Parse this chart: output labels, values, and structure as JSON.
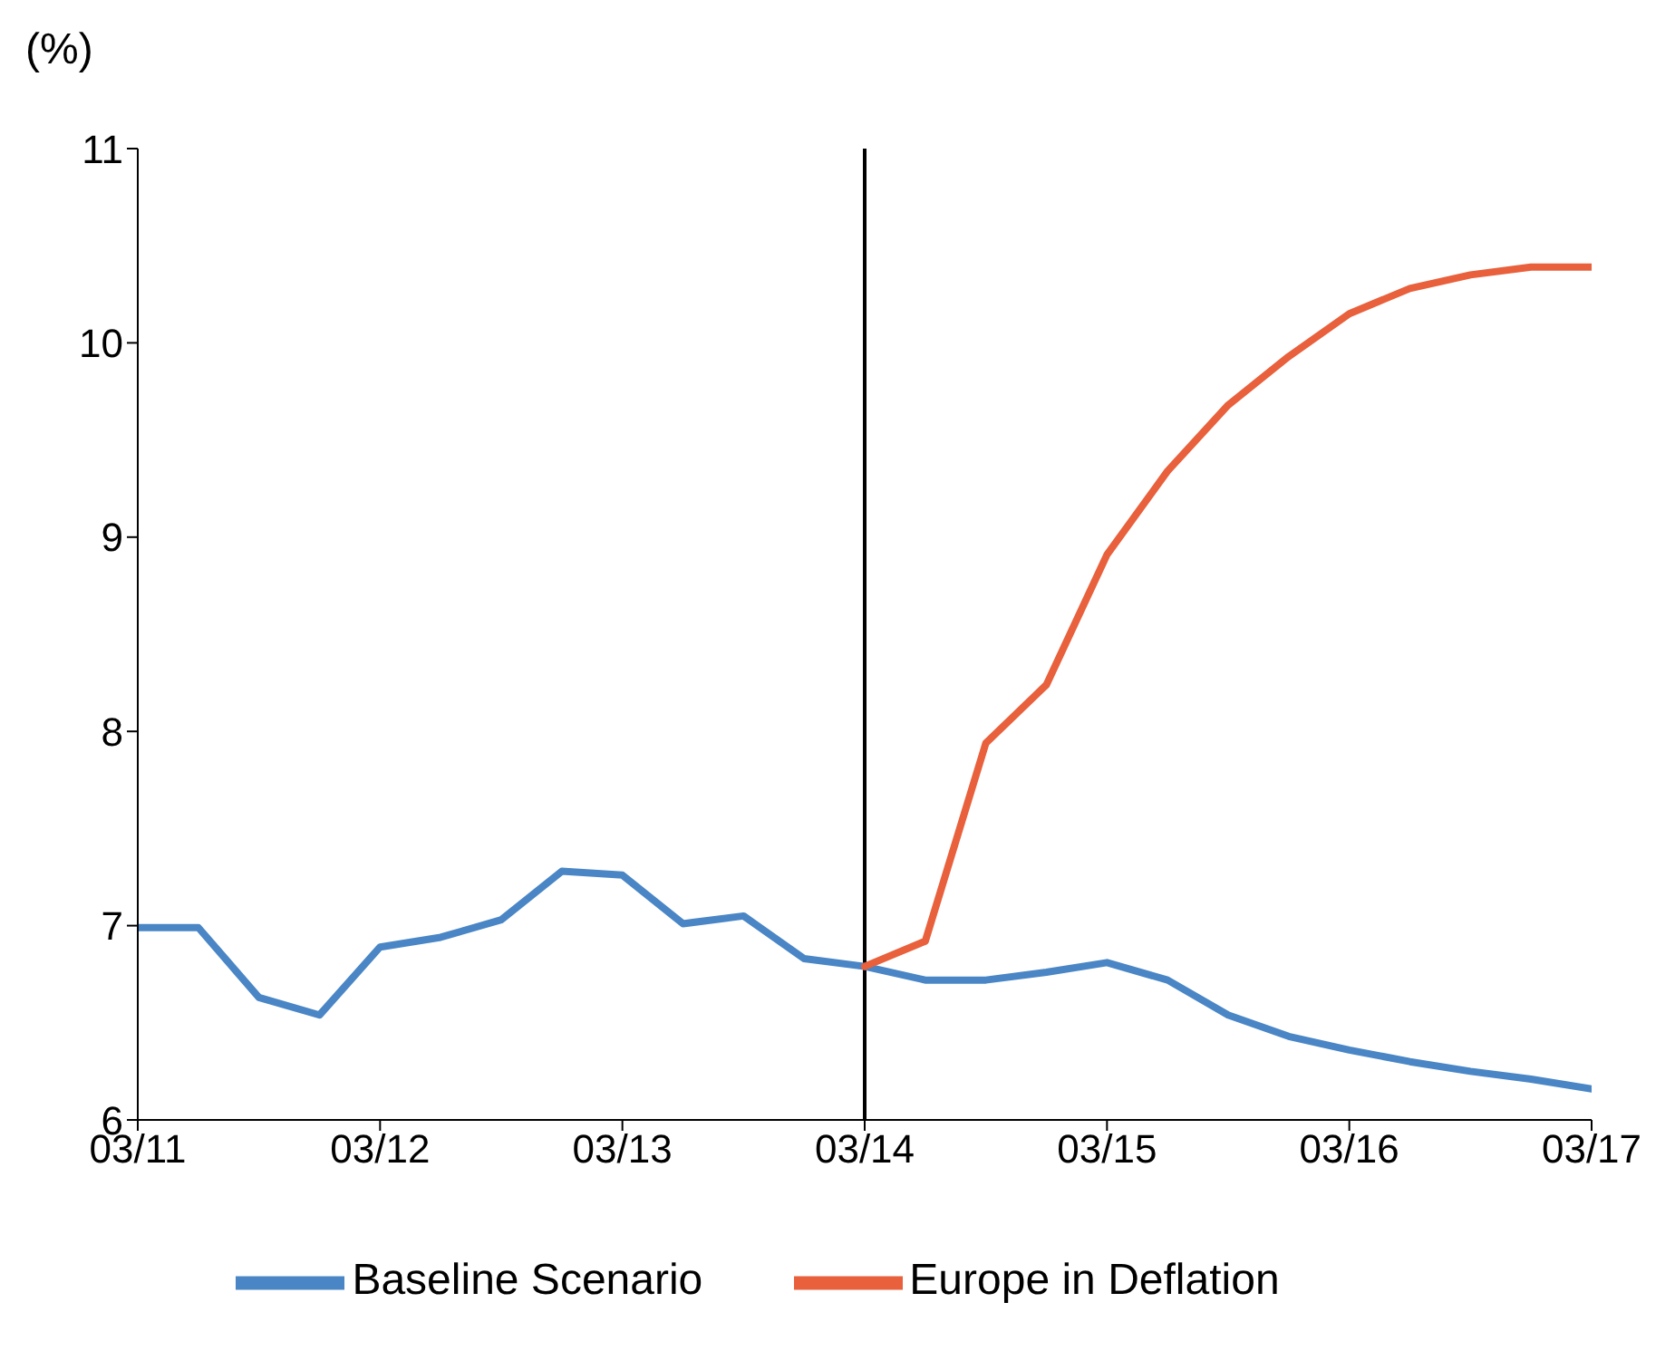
{
  "chart_data": {
    "type": "line",
    "ylabel": "(%)",
    "categories": [
      "03/11",
      null,
      null,
      null,
      "03/12",
      null,
      null,
      null,
      "03/13",
      null,
      null,
      null,
      "03/14",
      null,
      null,
      null,
      "03/15",
      null,
      null,
      null,
      "03/16",
      null,
      null,
      null,
      "03/17"
    ],
    "series": [
      {
        "name": "Baseline Scenario",
        "color": "#4a86c5",
        "values": [
          6.99,
          6.99,
          6.63,
          6.54,
          6.89,
          6.94,
          7.03,
          7.28,
          7.26,
          7.01,
          7.05,
          6.83,
          6.79,
          6.72,
          6.72,
          6.76,
          6.81,
          6.72,
          6.54,
          6.43,
          6.36,
          6.3,
          6.25,
          6.21,
          6.16
        ]
      },
      {
        "name": "Europe in Deflation",
        "color": "#e8603c",
        "values": [
          null,
          null,
          null,
          null,
          null,
          null,
          null,
          null,
          null,
          null,
          null,
          null,
          6.79,
          6.92,
          7.94,
          8.24,
          8.91,
          9.34,
          9.68,
          9.93,
          10.15,
          10.28,
          10.35,
          10.39,
          10.39
        ]
      }
    ],
    "ylim": [
      6,
      11
    ],
    "yticks": [
      6,
      7,
      8,
      9,
      10,
      11
    ],
    "ref_lines": [
      {
        "axis": "x",
        "value": "03/14",
        "color": "#000000"
      }
    ],
    "legend": "bottom",
    "marker": "none",
    "line_style": "solid",
    "grid": false
  }
}
